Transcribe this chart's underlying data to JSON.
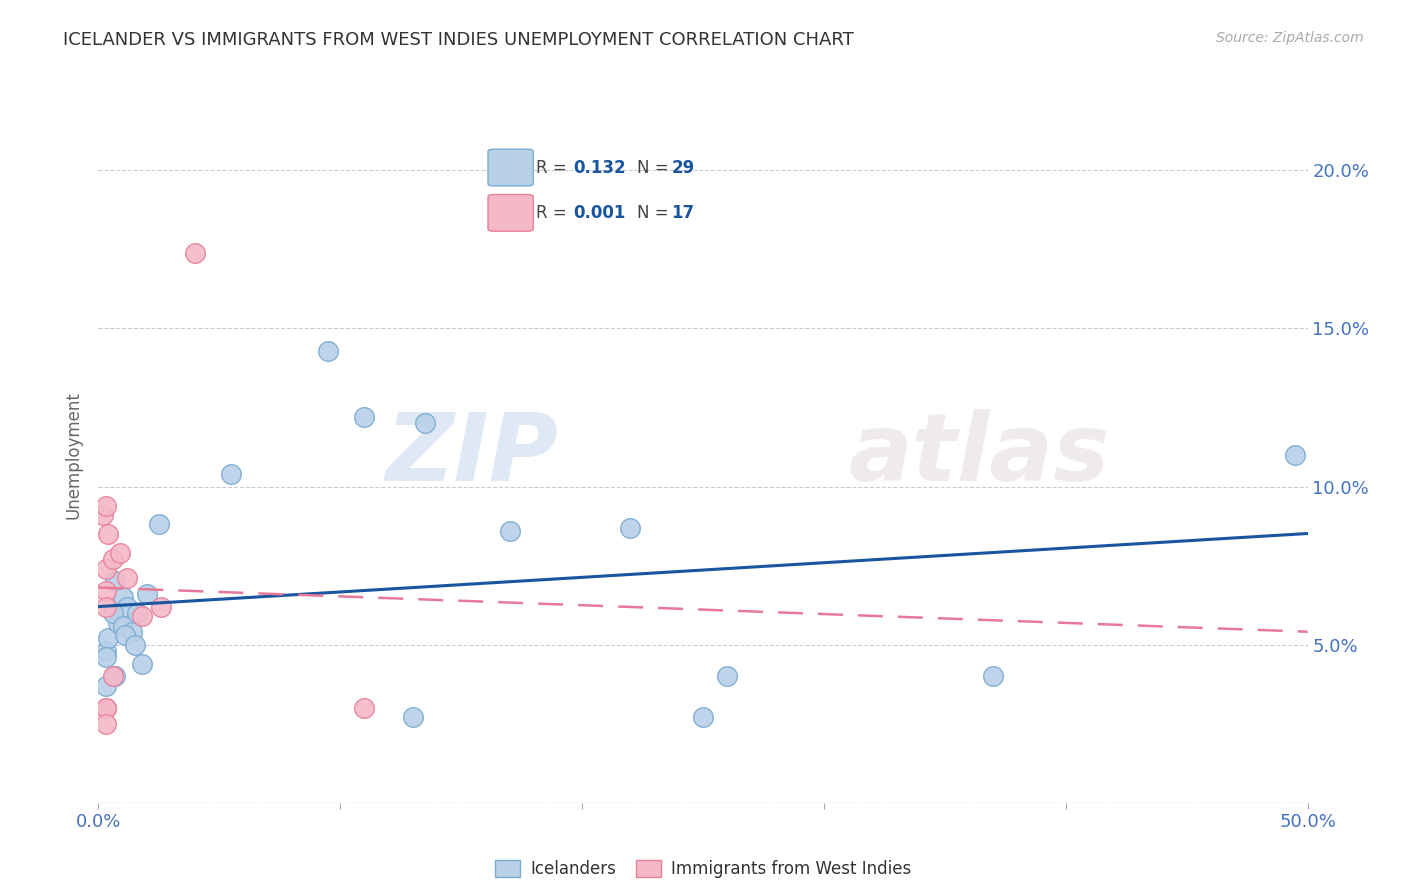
{
  "title": "ICELANDER VS IMMIGRANTS FROM WEST INDIES UNEMPLOYMENT CORRELATION CHART",
  "source": "Source: ZipAtlas.com",
  "ylabel_label": "Unemployment",
  "xlim": [
    0.0,
    0.5
  ],
  "ylim": [
    0.0,
    0.22
  ],
  "xticks": [
    0.0,
    0.1,
    0.2,
    0.3,
    0.4,
    0.5
  ],
  "xticklabels_outer": [
    "0.0%",
    "",
    "",
    "",
    "",
    "50.0%"
  ],
  "yticks": [
    0.0,
    0.05,
    0.1,
    0.15,
    0.2
  ],
  "right_yticklabels": [
    "",
    "5.0%",
    "10.0%",
    "15.0%",
    "20.0%"
  ],
  "icelanders_x": [
    0.003,
    0.007,
    0.01,
    0.004,
    0.008,
    0.012,
    0.016,
    0.003,
    0.006,
    0.01,
    0.014,
    0.018,
    0.003,
    0.007,
    0.011,
    0.015,
    0.02,
    0.025,
    0.055,
    0.095,
    0.11,
    0.135,
    0.17,
    0.22,
    0.26,
    0.495,
    0.37,
    0.13,
    0.25
  ],
  "icelanders_y": [
    0.048,
    0.07,
    0.065,
    0.052,
    0.057,
    0.062,
    0.06,
    0.046,
    0.06,
    0.056,
    0.054,
    0.044,
    0.037,
    0.04,
    0.053,
    0.05,
    0.066,
    0.088,
    0.104,
    0.143,
    0.122,
    0.12,
    0.086,
    0.087,
    0.04,
    0.11,
    0.04,
    0.027,
    0.027
  ],
  "westindies_x": [
    0.002,
    0.004,
    0.003,
    0.006,
    0.009,
    0.012,
    0.003,
    0.006,
    0.003,
    0.018,
    0.04,
    0.003,
    0.11,
    0.026,
    0.003,
    0.003,
    0.003
  ],
  "westindies_y": [
    0.091,
    0.085,
    0.074,
    0.077,
    0.079,
    0.071,
    0.067,
    0.04,
    0.03,
    0.059,
    0.174,
    0.094,
    0.03,
    0.062,
    0.03,
    0.025,
    0.062
  ],
  "icelander_color": "#b8d0e8",
  "icelander_edge_color": "#7aabcf",
  "westindies_color": "#f5b8c8",
  "westindies_edge_color": "#e8809a",
  "icelander_line_color": "#1a56a0",
  "westindies_line_color": "#e87898",
  "R_icelander": "0.132",
  "N_icelander": "29",
  "R_westindies": "0.001",
  "N_westindies": "17",
  "legend_label_icelander": "Icelanders",
  "legend_label_westindies": "Immigrants from West Indies",
  "watermark_zip": "ZIP",
  "watermark_atlas": "atlas",
  "background_color": "#ffffff",
  "grid_color": "#cccccc",
  "tick_color": "#4472c4",
  "title_color": "#333333",
  "source_color": "#aaaaaa"
}
